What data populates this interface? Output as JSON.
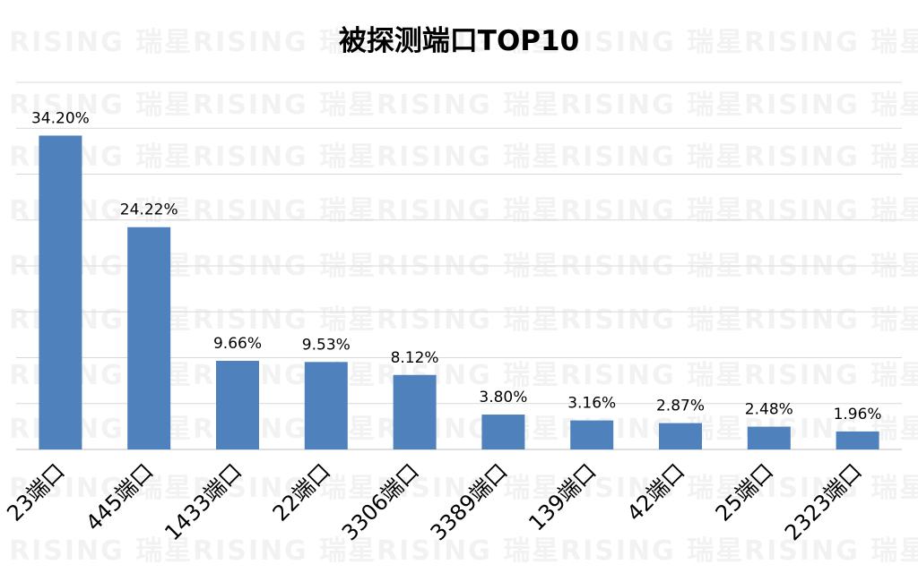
{
  "watermark": {
    "brand": "RISING 瑞星"
  },
  "colors": {
    "bar": "#4f81bd",
    "gridline": "#d9d9d9",
    "axis": "#bfbfbf",
    "text": "#000000"
  },
  "chart_data": {
    "type": "bar",
    "title": "被探测端口TOP10",
    "xlabel": "",
    "ylabel": "",
    "ylim": [
      0,
      40
    ],
    "grid": true,
    "categories": [
      "23端口",
      "445端口",
      "1433端口",
      "22端口",
      "3306端口",
      "3389端口",
      "139端口",
      "42端口",
      "25端口",
      "2323端口"
    ],
    "values": [
      34.2,
      24.22,
      9.66,
      9.53,
      8.12,
      3.8,
      3.16,
      2.87,
      2.48,
      1.96
    ],
    "data_labels": [
      "34.20%",
      "24.22%",
      "9.66%",
      "9.53%",
      "8.12%",
      "3.80%",
      "3.16%",
      "2.87%",
      "2.48%",
      "1.96%"
    ]
  }
}
